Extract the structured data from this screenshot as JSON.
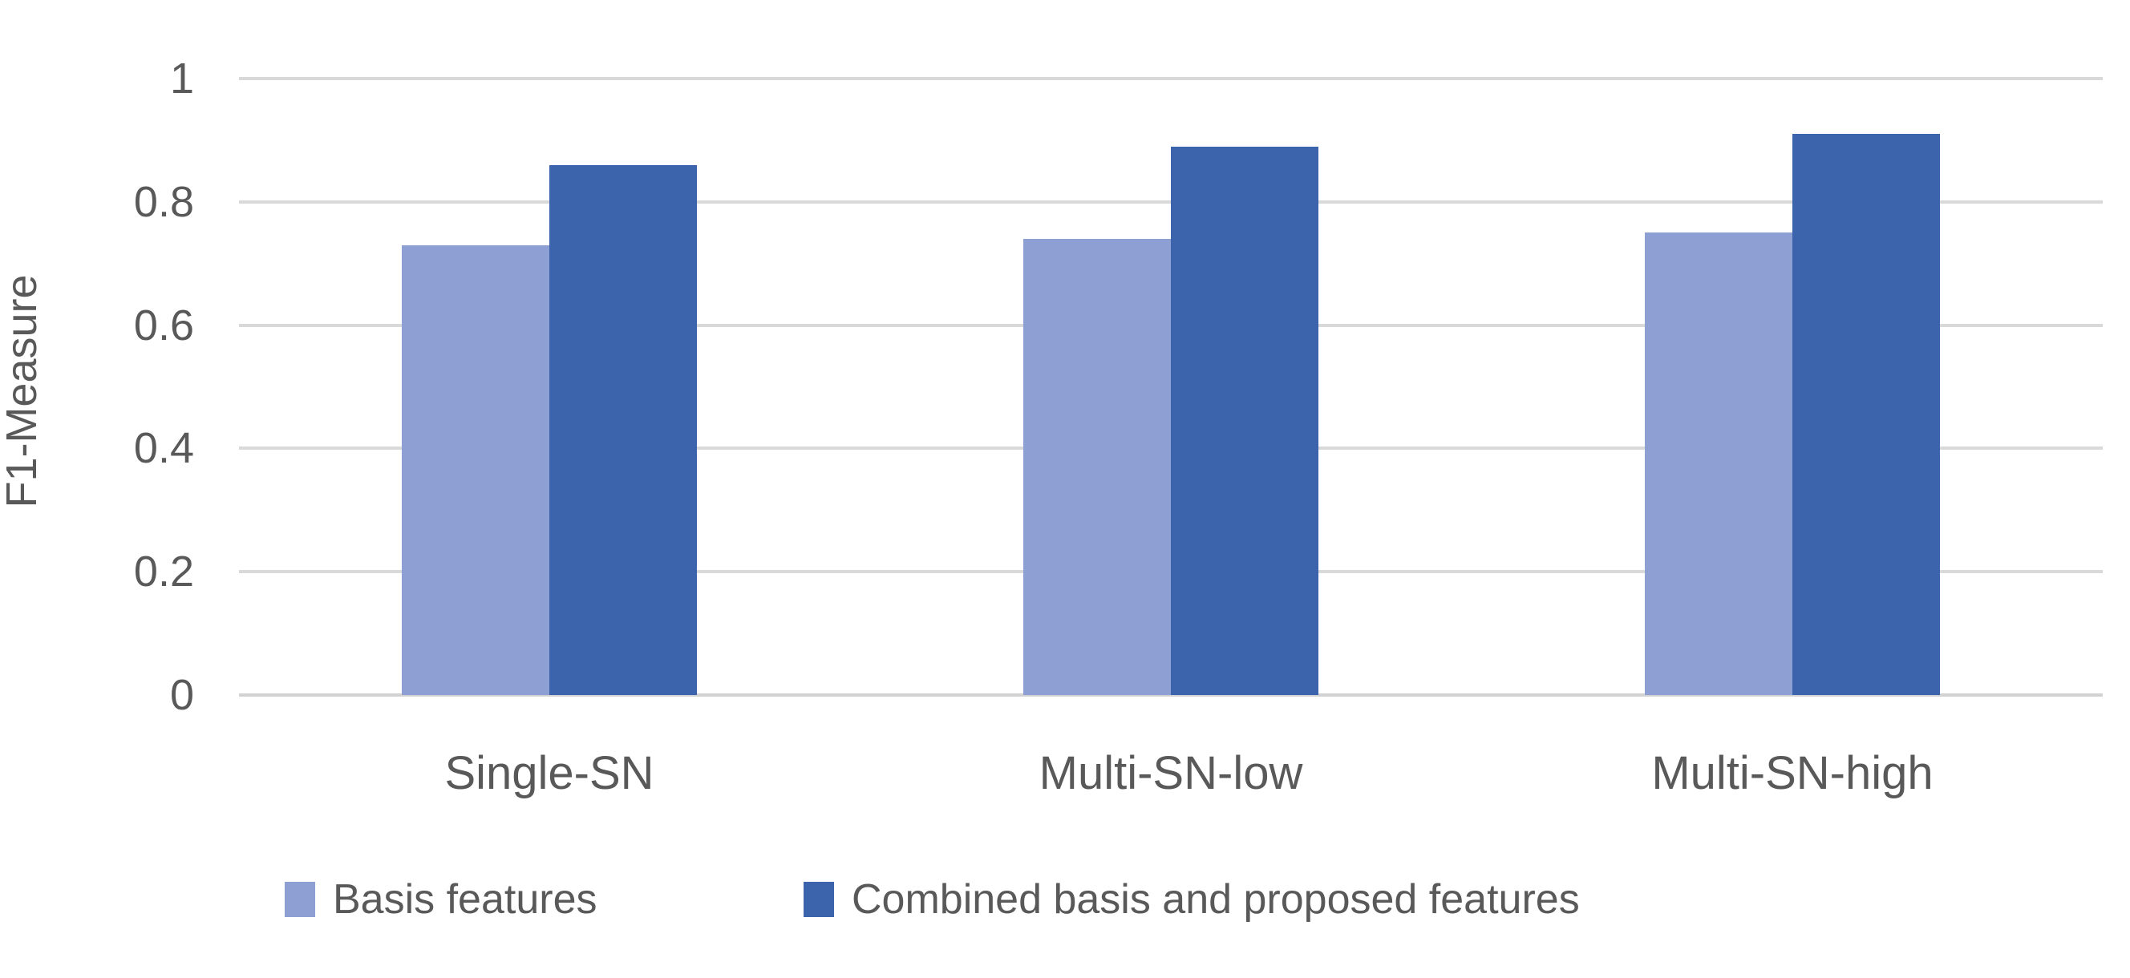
{
  "chart_data": {
    "type": "bar",
    "title": "",
    "categories": [
      "Single-SN",
      "Multi-SN-low",
      "Multi-SN-high"
    ],
    "series": [
      {
        "name": "Basis features",
        "color": "#8EA0D3",
        "values": [
          0.73,
          0.74,
          0.75
        ]
      },
      {
        "name": "Combined basis and proposed features",
        "color": "#3C64AD",
        "values": [
          0.86,
          0.89,
          0.91
        ]
      }
    ],
    "xlabel": "",
    "ylabel": "F1-Measure",
    "ylim": [
      0,
      1
    ],
    "ytick_step": 0.2,
    "yticks": [
      {
        "value": 0,
        "label": "0"
      },
      {
        "value": 0.2,
        "label": "0.2"
      },
      {
        "value": 0.4,
        "label": "0.4"
      },
      {
        "value": 0.6,
        "label": "0.6"
      },
      {
        "value": 0.8,
        "label": "0.8"
      },
      {
        "value": 1,
        "label": "1"
      }
    ],
    "grid": true,
    "legend_position": "bottom"
  },
  "colors": {
    "gridline": "#d9d9d9",
    "axis_line": "#d2d2d2",
    "text": "#595959",
    "background": "#ffffff"
  }
}
